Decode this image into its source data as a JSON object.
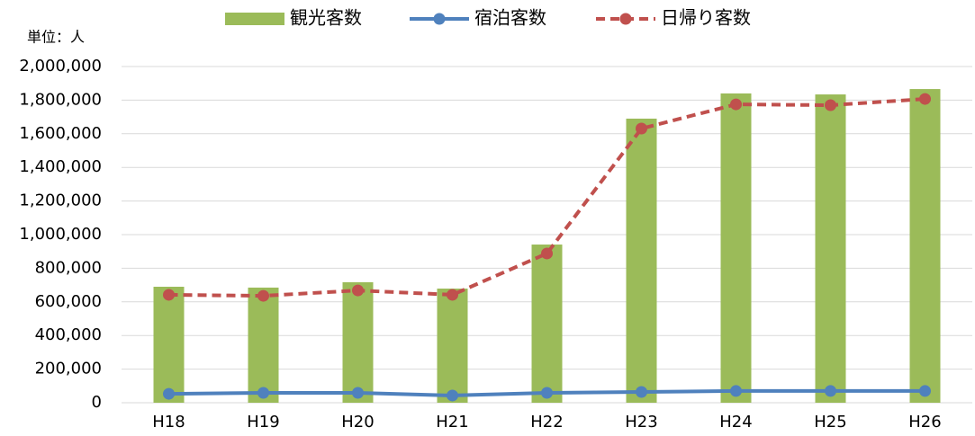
{
  "chart_data": {
    "type": "bar_line",
    "unit_label": "単位：人",
    "categories": [
      "H18",
      "H19",
      "H20",
      "H21",
      "H22",
      "H23",
      "H24",
      "H25",
      "H26"
    ],
    "series": [
      {
        "name": "観光客数",
        "type": "bar",
        "color": "#9bbb59",
        "values": [
          690000,
          685000,
          717000,
          679000,
          941000,
          1690000,
          1840000,
          1834000,
          1866000
        ]
      },
      {
        "name": "宿泊客数",
        "type": "line",
        "color": "#4f81bd",
        "dashed": false,
        "values": [
          53000,
          59000,
          59000,
          43000,
          59000,
          64000,
          70000,
          70000,
          70000
        ]
      },
      {
        "name": "日帰り客数",
        "type": "line",
        "color": "#c0504d",
        "dashed": true,
        "values": [
          642000,
          636000,
          668000,
          642000,
          888000,
          1631000,
          1775000,
          1770000,
          1807000
        ]
      }
    ],
    "ylim": [
      0,
      2000000
    ],
    "yticks": [
      0,
      {
        "value": 200000,
        "label": "200,000"
      },
      {
        "value": 400000,
        "label": "400,000"
      },
      {
        "value": 600000,
        "label": "600,000"
      },
      {
        "value": 800000,
        "label": "800,000"
      },
      {
        "value": 1000000,
        "label": "1,000,000"
      },
      {
        "value": 1200000,
        "label": "1,200,000"
      },
      {
        "value": 1400000,
        "label": "1,400,000"
      },
      {
        "value": 1600000,
        "label": "1,600,000"
      },
      {
        "value": 1800000,
        "label": "1,800,000"
      },
      {
        "value": 2000000,
        "label": "2,000,000"
      }
    ],
    "grid": true,
    "legend": "top"
  }
}
